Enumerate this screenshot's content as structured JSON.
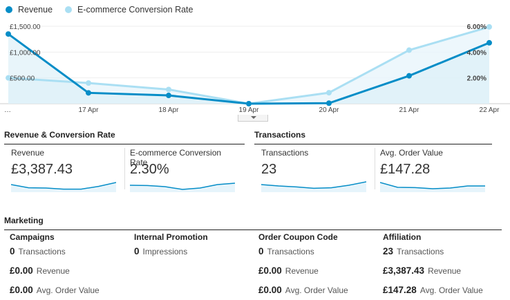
{
  "legend": {
    "revenue": "Revenue",
    "conversion": "E-commerce Conversion Rate",
    "revenue_color": "#058dc7",
    "conversion_color": "#aadff3"
  },
  "chart_data": {
    "type": "line",
    "x": [
      "…",
      "17 Apr",
      "18 Apr",
      "19 Apr",
      "20 Apr",
      "21 Apr",
      "22 Apr"
    ],
    "y_left_ticks": [
      "£1,500.00",
      "£1,000.00",
      "£500.00"
    ],
    "y_right_ticks": [
      "6.00%",
      "4.00%",
      "2.00%"
    ],
    "y_left_range": [
      0,
      1500
    ],
    "y_right_range": [
      0,
      6
    ],
    "series": [
      {
        "name": "Revenue",
        "axis": "left",
        "color": "#058dc7",
        "values": [
          1350,
          210,
          160,
          0,
          10,
          540,
          1180
        ]
      },
      {
        "name": "E-commerce Conversion Rate",
        "axis": "right",
        "color": "#aadff3",
        "values": [
          2.0,
          1.6,
          1.1,
          0,
          0.85,
          4.15,
          5.95
        ]
      }
    ]
  },
  "sections": {
    "revenue_conversion": "Revenue & Conversion Rate",
    "transactions": "Transactions",
    "marketing": "Marketing"
  },
  "metrics": [
    {
      "label": "Revenue",
      "value": "£3,387.43",
      "spark": [
        0.55,
        0.32,
        0.3,
        0.22,
        0.22,
        0.42,
        0.7
      ]
    },
    {
      "label": "E-commerce Conversion Rate",
      "value": "2.30%",
      "spark": [
        0.5,
        0.48,
        0.4,
        0.2,
        0.3,
        0.55,
        0.65
      ]
    },
    {
      "label": "Transactions",
      "value": "23",
      "spark": [
        0.55,
        0.45,
        0.38,
        0.28,
        0.32,
        0.5,
        0.75
      ]
    },
    {
      "label": "Avg. Order Value",
      "value": "£147.28",
      "spark": [
        0.7,
        0.35,
        0.33,
        0.25,
        0.3,
        0.45,
        0.45
      ]
    }
  ],
  "marketing": [
    {
      "title": "Campaigns",
      "rows": [
        {
          "value": "0",
          "label": "Transactions"
        },
        {
          "value": "£0.00",
          "label": "Revenue"
        },
        {
          "value": "£0.00",
          "label": "Avg. Order Value"
        }
      ]
    },
    {
      "title": "Internal Promotion",
      "rows": [
        {
          "value": "0",
          "label": "Impressions"
        }
      ]
    },
    {
      "title": "Order Coupon Code",
      "rows": [
        {
          "value": "0",
          "label": "Transactions"
        },
        {
          "value": "£0.00",
          "label": "Revenue"
        },
        {
          "value": "£0.00",
          "label": "Avg. Order Value"
        }
      ]
    },
    {
      "title": "Affiliation",
      "rows": [
        {
          "value": "23",
          "label": "Transactions"
        },
        {
          "value": "£3,387.43",
          "label": "Revenue"
        },
        {
          "value": "£147.28",
          "label": "Avg. Order Value"
        }
      ]
    }
  ]
}
